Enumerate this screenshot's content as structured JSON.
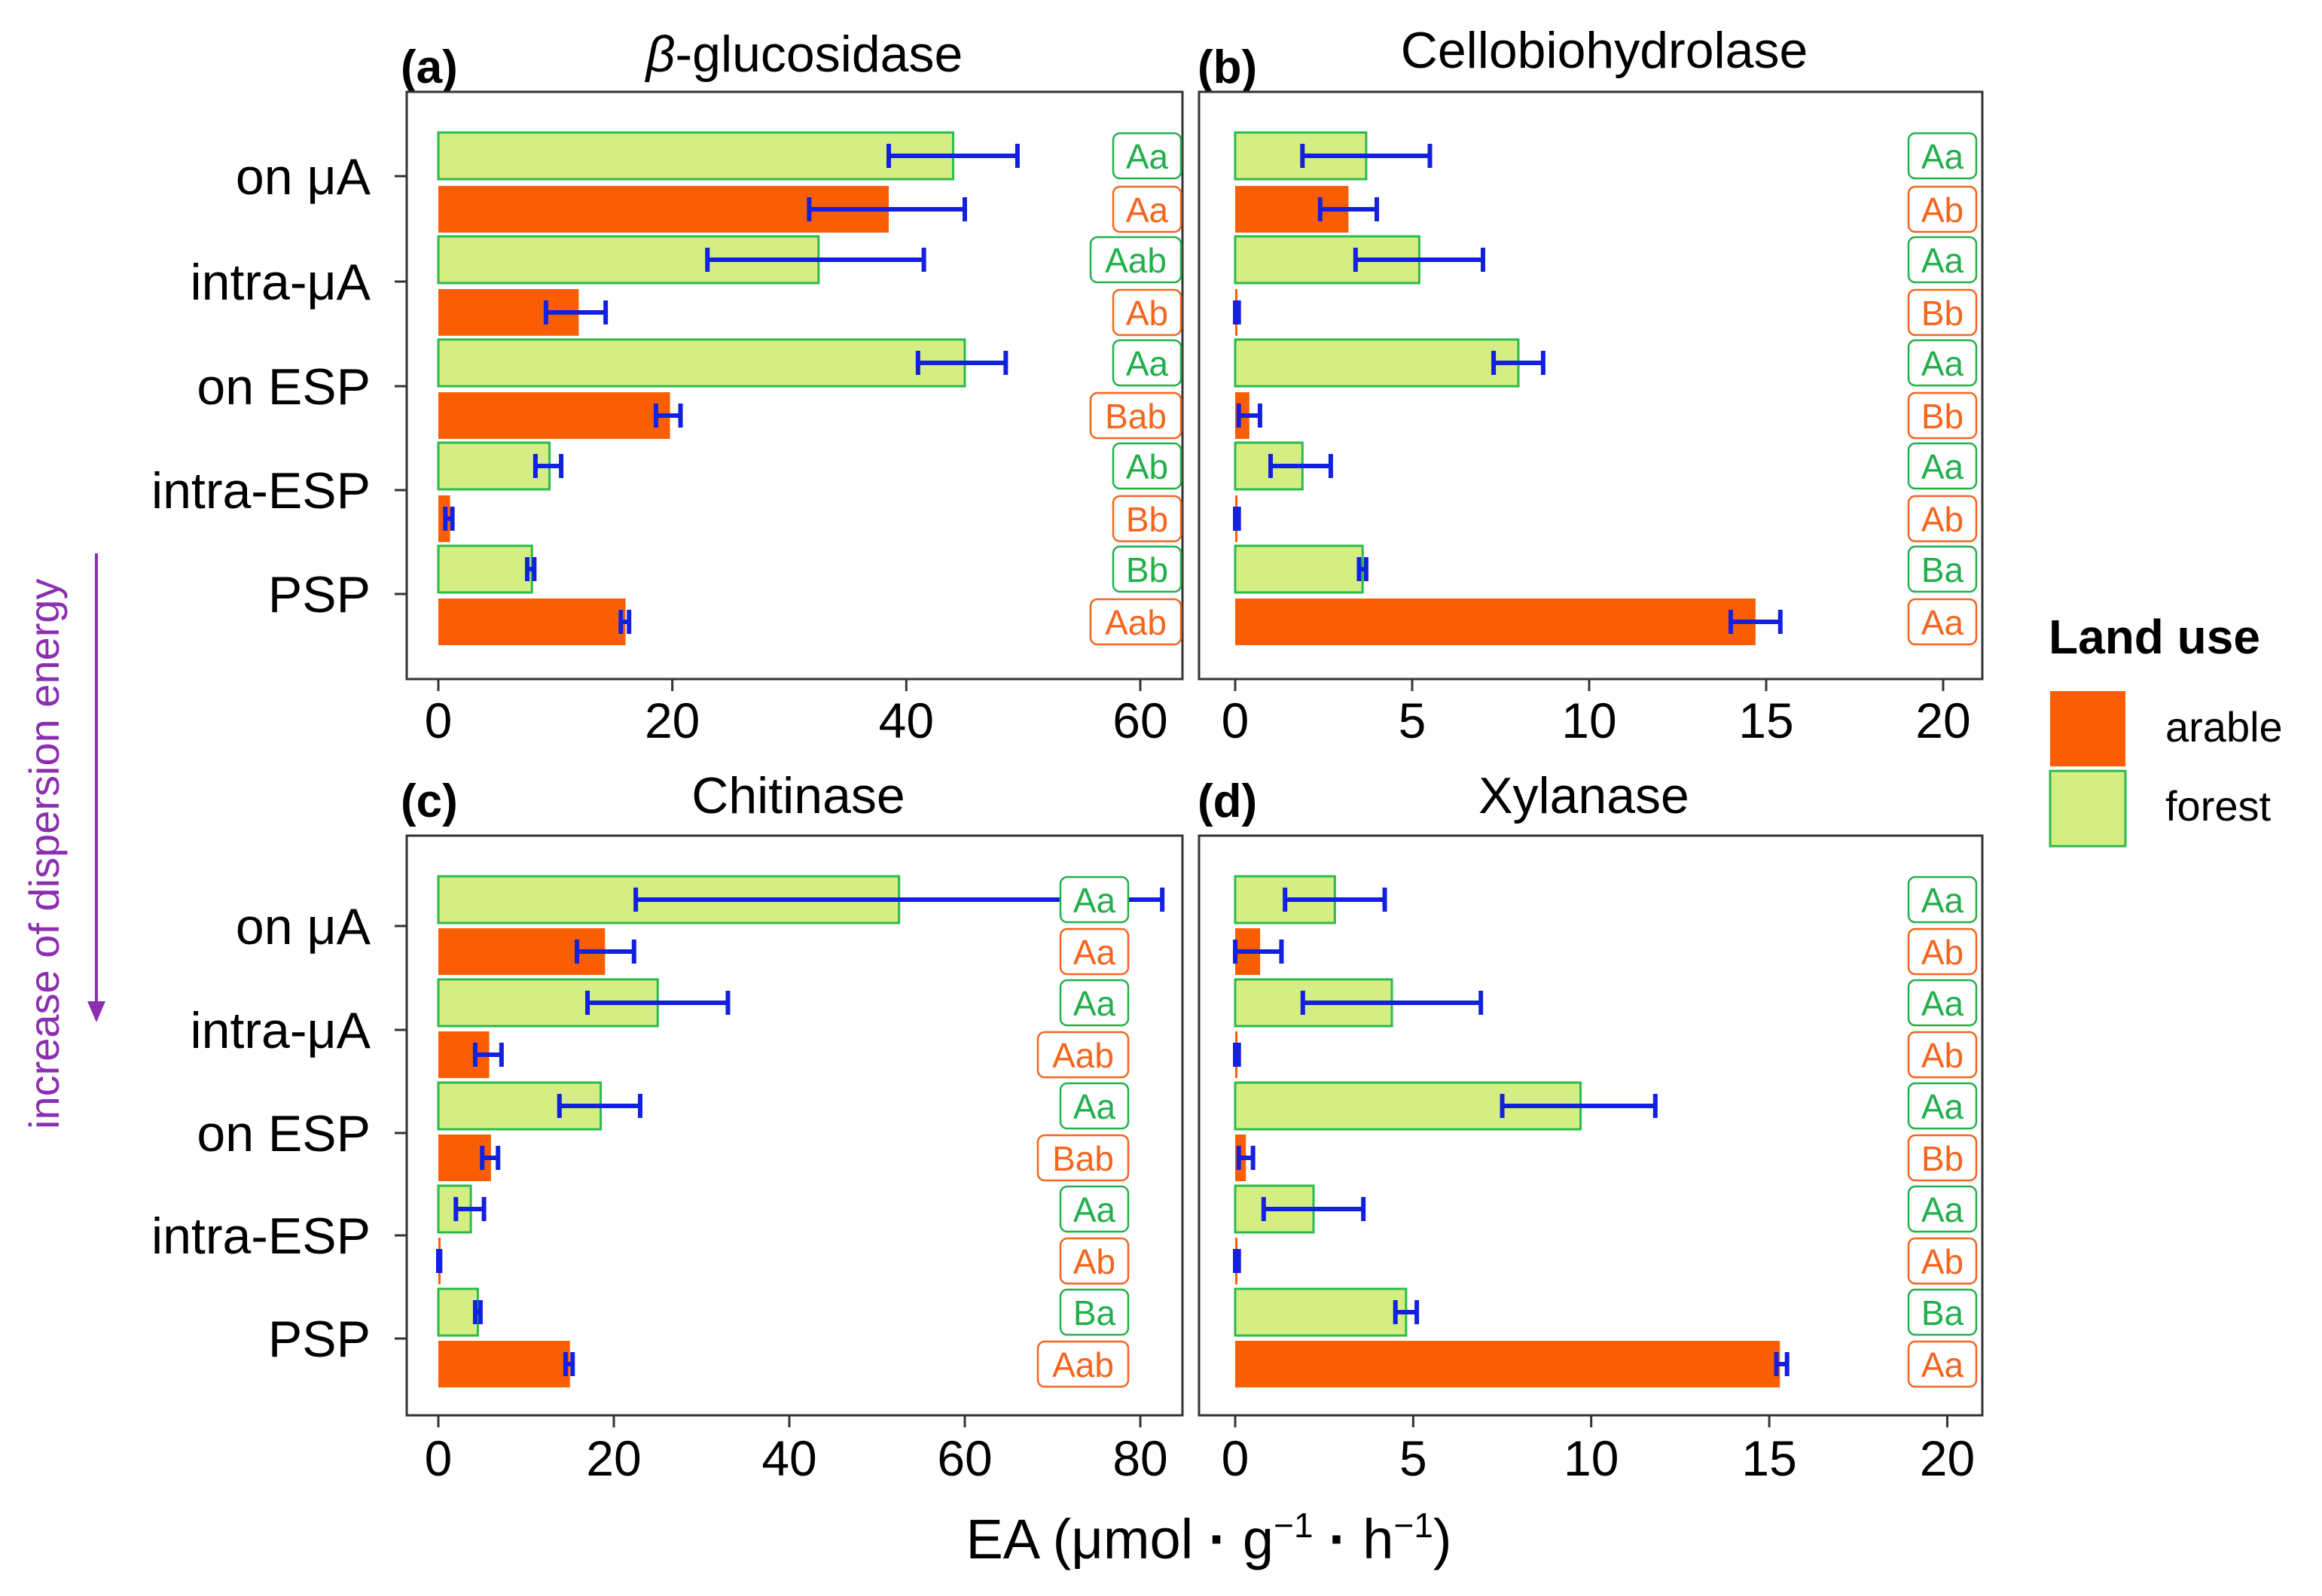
{
  "colors": {
    "arable_fill": "#F95F02",
    "forest_fill": "#D4EE84",
    "forest_stroke": "#2BBB4A",
    "arable_label": "#F4651E",
    "forest_label": "#22B04B",
    "error_bar": "#1220E0",
    "axis": "#333333",
    "side_label": "#8B2FB0"
  },
  "side_label": "increase of dispersion energy",
  "x_axis_title": {
    "prefix": "EA (μmol",
    "g": "g",
    "g_exp": "−1",
    "h": "h",
    "h_exp": "−1",
    "close": ")"
  },
  "legend": {
    "title": "Land use",
    "items": [
      {
        "key": "arable",
        "label": "arable"
      },
      {
        "key": "forest",
        "label": "forest"
      }
    ]
  },
  "chart_data": [
    {
      "type": "bar",
      "panel_label": "(a)",
      "title_prefix": "β",
      "title": "-glucosidase",
      "categories": [
        "on μA",
        "intra-μA",
        "on ESP",
        "intra-ESP",
        "PSP"
      ],
      "xlim": [
        0,
        60
      ],
      "xticks": [
        "0",
        "20",
        "40",
        "60"
      ],
      "series": [
        {
          "name": "forest",
          "values": [
            44,
            32.5,
            45,
            9.5,
            8
          ],
          "err_low": [
            38.5,
            23,
            41,
            8.3,
            7.6
          ],
          "err_high": [
            49.5,
            41.5,
            48.5,
            10.5,
            8.2
          ],
          "letters": [
            "Aa",
            "Aab",
            "Aa",
            "Ab",
            "Bb"
          ]
        },
        {
          "name": "arable",
          "values": [
            38.5,
            12,
            19.8,
            1,
            16
          ],
          "err_low": [
            31.7,
            9.2,
            18.6,
            0.6,
            15.6
          ],
          "err_high": [
            45,
            14.3,
            20.7,
            1.2,
            16.3
          ],
          "letters": [
            "Aa",
            "Ab",
            "Bab",
            "Bb",
            "Aab"
          ]
        }
      ]
    },
    {
      "type": "bar",
      "panel_label": "(b)",
      "title_prefix": "",
      "title": "Cellobiohydrolase",
      "categories": [
        "on μA",
        "intra-μA",
        "on ESP",
        "intra-ESP",
        "PSP"
      ],
      "xlim": [
        0,
        20
      ],
      "xticks": [
        "0",
        "5",
        "10",
        "15",
        "20"
      ],
      "series": [
        {
          "name": "forest",
          "values": [
            3.7,
            5.2,
            8,
            1.9,
            3.6
          ],
          "err_low": [
            1.9,
            3.4,
            7.3,
            1,
            3.5
          ],
          "err_high": [
            5.5,
            7,
            8.7,
            2.7,
            3.7
          ],
          "letters": [
            "Aa",
            "Aa",
            "Aa",
            "Aa",
            "Ba"
          ]
        },
        {
          "name": "arable",
          "values": [
            3.2,
            0.05,
            0.4,
            0.05,
            14.7
          ],
          "err_low": [
            2.4,
            0,
            0.1,
            0,
            14
          ],
          "err_high": [
            4,
            0.1,
            0.7,
            0.1,
            15.4
          ],
          "letters": [
            "Ab",
            "Bb",
            "Bb",
            "Ab",
            "Aa"
          ]
        }
      ]
    },
    {
      "type": "bar",
      "panel_label": "(c)",
      "title_prefix": "",
      "title": "Chitinase",
      "categories": [
        "on μA",
        "intra-μA",
        "on ESP",
        "intra-ESP",
        "PSP"
      ],
      "xlim": [
        0,
        83
      ],
      "xticks": [
        "0",
        "20",
        "40",
        "60",
        "80"
      ],
      "series": [
        {
          "name": "forest",
          "values": [
            52.5,
            25,
            18.5,
            3.7,
            4.5
          ],
          "err_low": [
            22.5,
            17,
            13.8,
            2,
            4.2
          ],
          "err_high": [
            82.5,
            33,
            23,
            5.2,
            4.8
          ],
          "letters": [
            "Aa",
            "Aa",
            "Aa",
            "Aa",
            "Ba"
          ]
        },
        {
          "name": "arable",
          "values": [
            19,
            5.8,
            6,
            0.1,
            15
          ],
          "err_low": [
            15.8,
            4.2,
            5,
            0,
            14.5
          ],
          "err_high": [
            22.3,
            7.2,
            6.8,
            0.2,
            15.3
          ],
          "letters": [
            "Aa",
            "Aab",
            "Bab",
            "Ab",
            "Aab"
          ]
        }
      ]
    },
    {
      "type": "bar",
      "panel_label": "(d)",
      "title_prefix": "",
      "title": "Xylanase",
      "categories": [
        "on μA",
        "intra-μA",
        "on ESP",
        "intra-ESP",
        "PSP"
      ],
      "xlim": [
        0,
        20.9
      ],
      "xticks": [
        "0",
        "5",
        "10",
        "15",
        "20"
      ],
      "series": [
        {
          "name": "forest",
          "values": [
            2.8,
            4.4,
            9.7,
            2.2,
            4.8
          ],
          "err_low": [
            1.4,
            1.9,
            7.5,
            0.8,
            4.5
          ],
          "err_high": [
            4.2,
            6.9,
            11.8,
            3.6,
            5.1
          ],
          "letters": [
            "Aa",
            "Aa",
            "Aa",
            "Aa",
            "Ba"
          ]
        },
        {
          "name": "arable",
          "values": [
            0.7,
            0.05,
            0.3,
            0.05,
            15.3
          ],
          "err_low": [
            0,
            0,
            0.1,
            0,
            15.2
          ],
          "err_high": [
            1.3,
            0.1,
            0.5,
            0.1,
            15.5
          ],
          "letters": [
            "Ab",
            "Ab",
            "Bb",
            "Ab",
            "Aa"
          ]
        }
      ]
    }
  ]
}
